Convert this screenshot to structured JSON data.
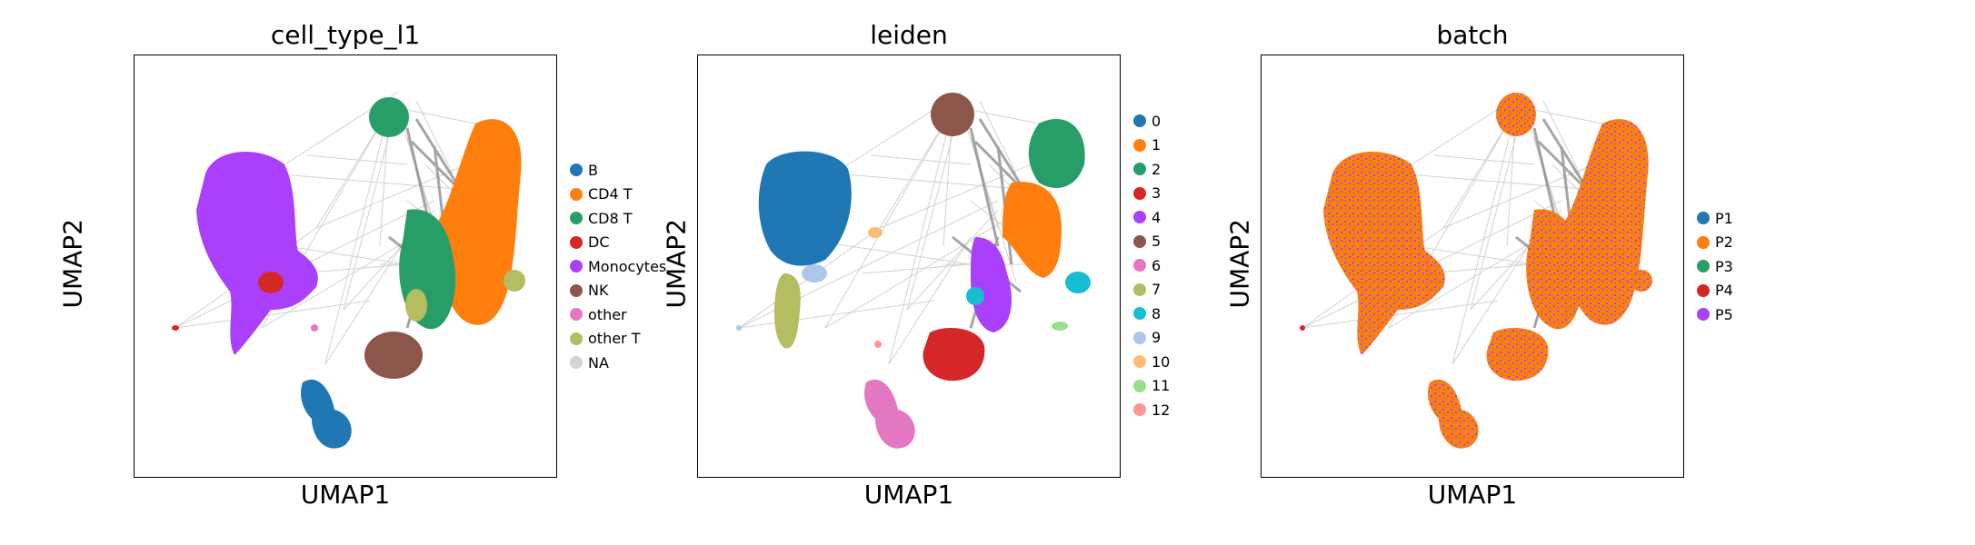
{
  "chart_data": [
    {
      "type": "scatter",
      "title": "cell_type_l1",
      "xlabel": "UMAP1",
      "ylabel": "UMAP2",
      "grid": false,
      "legend_placement": "right",
      "categories": [
        {
          "name": "B",
          "color": "#1f77b4"
        },
        {
          "name": "CD4 T",
          "color": "#ff7f0e"
        },
        {
          "name": "CD8 T",
          "color": "#279e68"
        },
        {
          "name": "DC",
          "color": "#d62728"
        },
        {
          "name": "Monocytes",
          "color": "#aa40fc"
        },
        {
          "name": "NK",
          "color": "#8c564b"
        },
        {
          "name": "other",
          "color": "#e377c2"
        },
        {
          "name": "other T",
          "color": "#b5bd61"
        },
        {
          "name": "NA",
          "color": "#d3d3d3"
        }
      ]
    },
    {
      "type": "scatter",
      "title": "leiden",
      "xlabel": "UMAP1",
      "ylabel": "UMAP2",
      "grid": false,
      "legend_placement": "right",
      "categories": [
        {
          "name": "0",
          "color": "#1f77b4"
        },
        {
          "name": "1",
          "color": "#ff7f0e"
        },
        {
          "name": "2",
          "color": "#279e68"
        },
        {
          "name": "3",
          "color": "#d62728"
        },
        {
          "name": "4",
          "color": "#aa40fc"
        },
        {
          "name": "5",
          "color": "#8c564b"
        },
        {
          "name": "6",
          "color": "#e377c2"
        },
        {
          "name": "7",
          "color": "#b5bd61"
        },
        {
          "name": "8",
          "color": "#17becf"
        },
        {
          "name": "9",
          "color": "#aec7e8"
        },
        {
          "name": "10",
          "color": "#ffbb78"
        },
        {
          "name": "11",
          "color": "#98df8a"
        },
        {
          "name": "12",
          "color": "#ff9896"
        }
      ]
    },
    {
      "type": "scatter",
      "title": "batch",
      "xlabel": "UMAP1",
      "ylabel": "UMAP2",
      "grid": false,
      "legend_placement": "right",
      "categories": [
        {
          "name": "P1",
          "color": "#1f77b4"
        },
        {
          "name": "P2",
          "color": "#ff7f0e"
        },
        {
          "name": "P3",
          "color": "#279e68"
        },
        {
          "name": "P4",
          "color": "#d62728"
        },
        {
          "name": "P5",
          "color": "#aa40fc"
        }
      ]
    }
  ]
}
